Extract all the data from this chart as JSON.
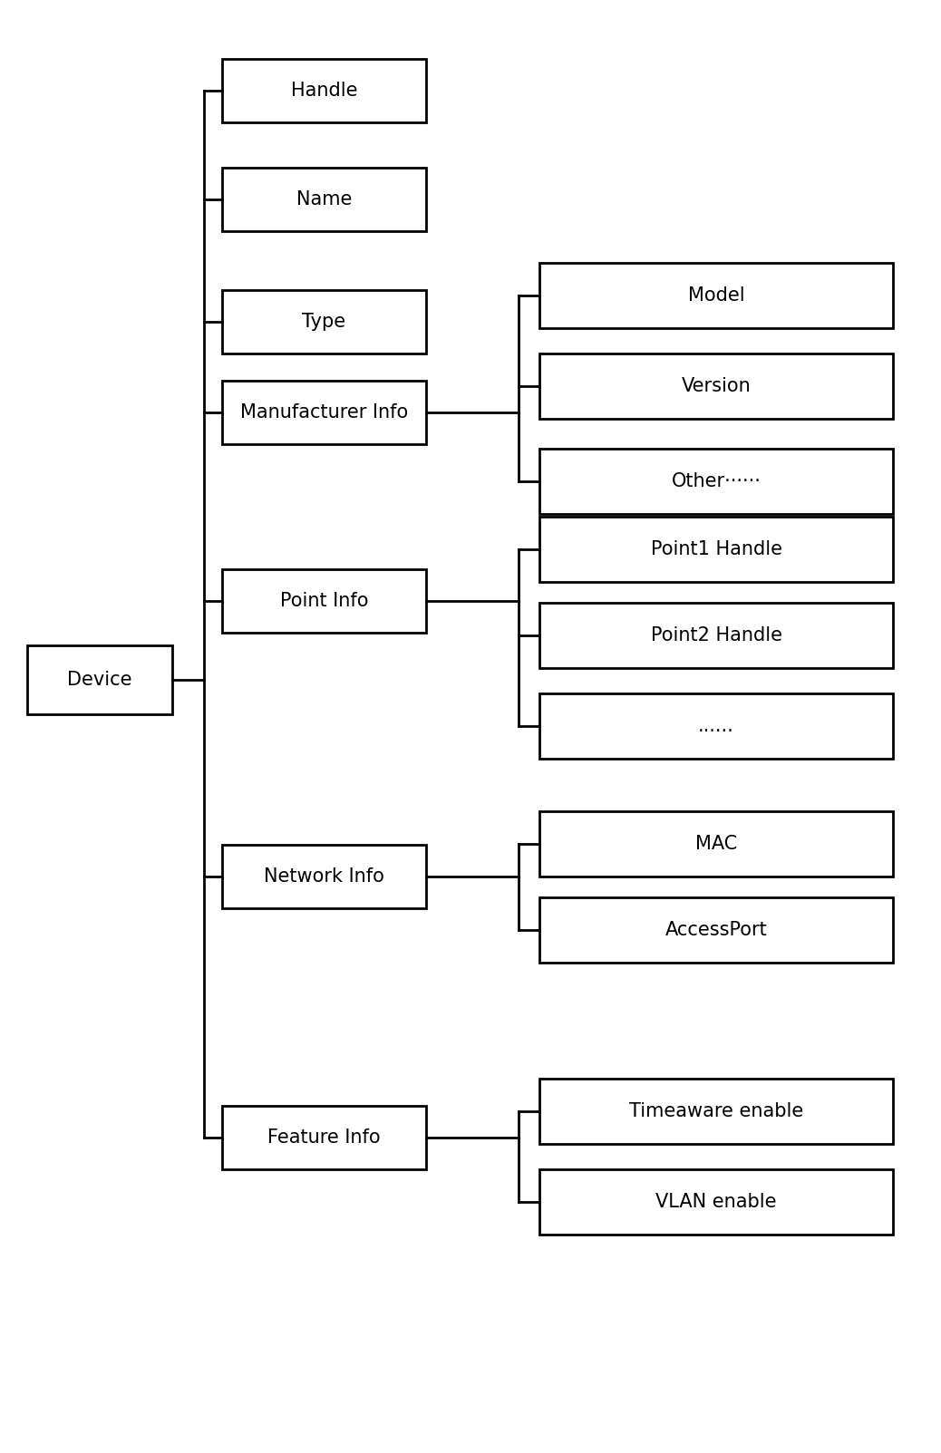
{
  "background_color": "#ffffff",
  "fig_width": 10.38,
  "fig_height": 16.03,
  "font_size": 15,
  "box_edge_color": "#000000",
  "box_face_color": "#ffffff",
  "line_color": "#000000",
  "line_width": 2.0,
  "labels": {
    "Device": "Device",
    "Handle": "Handle",
    "Name": "Name",
    "Type": "Type",
    "ManufacturerInfo": "Manufacturer Info",
    "PointInfo": "Point Info",
    "NetworkInfo": "Network Info",
    "FeatureInfo": "Feature Info",
    "Model": "Model",
    "Version": "Version",
    "Other": "Other······",
    "Point1Handle": "Point1 Handle",
    "Point2Handle": "Point2 Handle",
    "PointDots": "......",
    "MAC": "MAC",
    "AccessPort": "AccessPort",
    "TimeawareEnable": "Timeaware enable",
    "VLANEnable": "VLAN enable"
  }
}
